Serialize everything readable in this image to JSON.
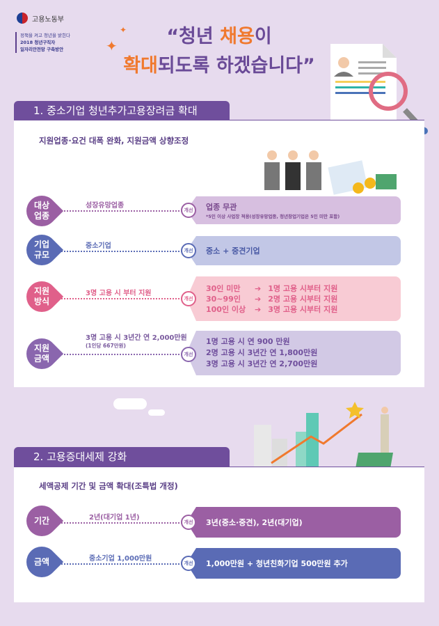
{
  "header": {
    "ministry": "고용노동부",
    "tagline": [
      "정책을 켜고 청년을 밝힌다",
      "2018 청년구직자",
      "일자리안전망 구축방안"
    ],
    "title_line1": [
      "“청년 ",
      "채용",
      "이"
    ],
    "title_line2": [
      "확대",
      "되도록 하겠습니다”"
    ]
  },
  "colors": {
    "background": "#e7dbee",
    "section_header": "#6f4e9c",
    "accent_orange": "#f0792e",
    "purple": "#9b5fa3",
    "blue": "#5a6bb5",
    "pink": "#e0608a",
    "violet": "#8a66ae"
  },
  "improve_label": "개선",
  "section1": {
    "title": "1. 중소기업 청년추가고용장려금 확대",
    "subtitle": "지원업종·요건 대폭 완화, 지원금액 상향조정",
    "rows": [
      {
        "label": [
          "대상",
          "업종"
        ],
        "before": "성장유망업종",
        "after": "업종 무관",
        "note": "*5인 이상 사업장 적용(성장유망업종, 청년창업기업은 5인 미만 포함)"
      },
      {
        "label": [
          "기업",
          "규모"
        ],
        "before": "중소기업",
        "after": "중소 + 중견기업"
      },
      {
        "label": [
          "지원",
          "방식"
        ],
        "before": "3명 고용 시 부터 지원",
        "after_rows": [
          [
            "30인 미만",
            "1명 고용 시부터 지원"
          ],
          [
            "30~99인",
            "2명 고용 시부터 지원"
          ],
          [
            "100인 이상",
            "3명 고용 시부터 지원"
          ]
        ]
      },
      {
        "label": [
          "지원",
          "금액"
        ],
        "before": "3명 고용 시 3년간 연 2,000만원",
        "before_note": "(1인당 667만원)",
        "after_lines": [
          "1명 고용 시 연 900 만원",
          "2명 고용 시 3년간 연 1,800만원",
          "3명 고용 시 3년간 연 2,700만원"
        ]
      }
    ]
  },
  "section2": {
    "title": "2. 고용증대세제 강화",
    "subtitle": "세액공제 기간 및 금액 확대(조특법 개정)",
    "rows": [
      {
        "label": "기간",
        "before": "2년(대기업 1년)",
        "after": "3년(중소·중견), 2년(대기업)"
      },
      {
        "label": "금액",
        "before": "중소기업 1,000만원",
        "after": "1,000만원 + 청년친화기업 500만원 추가"
      }
    ]
  }
}
